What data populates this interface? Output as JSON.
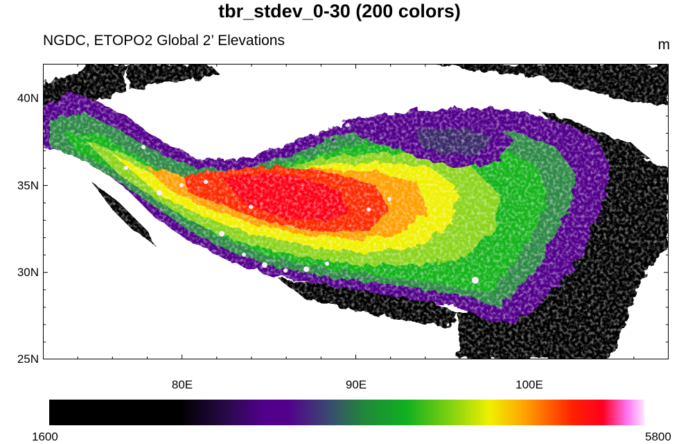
{
  "title": "tbr_stdev_0-30 (200 colors)",
  "subtitle_left": "NGDC, ETOPO2 Global 2’ Elevations",
  "units": "m",
  "map": {
    "region": "Tibetan Plateau",
    "lon_range": [
      72,
      108
    ],
    "lat_range": [
      25,
      42
    ],
    "lat_ticks": [
      {
        "label": "25N"
      },
      {
        "label": "30N"
      },
      {
        "label": "35N"
      },
      {
        "label": "40N"
      }
    ],
    "lon_ticks": [
      {
        "label": "80E"
      },
      {
        "label": "90E"
      },
      {
        "label": "100E"
      }
    ]
  },
  "colorbar": {
    "min_label": "1600",
    "max_label": "5800",
    "colors": [
      "#000000",
      "#000000",
      "#1a0830",
      "#4a0a7a",
      "#52008c",
      "#3a3a78",
      "#1e7a3c",
      "#10b020",
      "#7ad010",
      "#e8f000",
      "#ffa000",
      "#ff3000",
      "#ff0010",
      "#ff60f0",
      "#ffe0ff"
    ]
  }
}
